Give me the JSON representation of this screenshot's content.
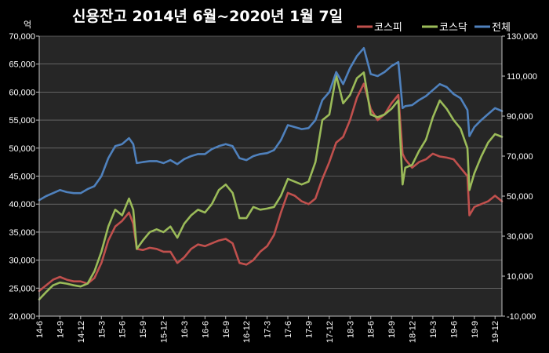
{
  "chart_data": {
    "type": "line",
    "title": "신용잔고 2014년 6월~2020년 1월 7일",
    "left_unit": "억",
    "legend_position": "top-right",
    "grid": true,
    "y_left": {
      "range": [
        20000,
        70000
      ],
      "ticks": [
        "20,000",
        "25,000",
        "30,000",
        "35,000",
        "40,000",
        "45,000",
        "50,000",
        "55,000",
        "60,000",
        "65,000",
        "70,000"
      ]
    },
    "y_right": {
      "range": [
        -10000,
        130000
      ],
      "ticks": [
        "-10,000",
        "10,000",
        "30,000",
        "50,000",
        "70,000",
        "90,000",
        "110,000",
        "130,000"
      ]
    },
    "x": {
      "range": [
        "2014-06",
        "2020-01"
      ],
      "ticks": [
        "14-6",
        "14-9",
        "14-12",
        "15-3",
        "15-6",
        "15-9",
        "15-12",
        "16-3",
        "16-6",
        "16-9",
        "16-12",
        "17-3",
        "17-6",
        "17-9",
        "17-12",
        "18-3",
        "18-6",
        "18-9",
        "18-12",
        "19-3",
        "19-6",
        "19-9",
        "19-12"
      ]
    },
    "series": [
      {
        "name": "코스피",
        "axis": "left",
        "color": "#c0504d",
        "points": [
          [
            "2014-06",
            24500
          ],
          [
            "2014-07",
            25500
          ],
          [
            "2014-08",
            26500
          ],
          [
            "2014-09",
            27000
          ],
          [
            "2014-10",
            26500
          ],
          [
            "2014-11",
            26200
          ],
          [
            "2014-12",
            26200
          ],
          [
            "2015-01",
            25800
          ],
          [
            "2015-02",
            26800
          ],
          [
            "2015-03",
            29500
          ],
          [
            "2015-04",
            33500
          ],
          [
            "2015-05",
            36000
          ],
          [
            "2015-06",
            37000
          ],
          [
            "2015-07",
            38500
          ],
          [
            "2015-07-20",
            36500
          ],
          [
            "2015-08-05",
            32000
          ],
          [
            "2015-09",
            31800
          ],
          [
            "2015-10",
            32200
          ],
          [
            "2015-11",
            32000
          ],
          [
            "2015-12",
            31500
          ],
          [
            "2016-01",
            31500
          ],
          [
            "2016-02",
            29500
          ],
          [
            "2016-03",
            30500
          ],
          [
            "2016-04",
            32000
          ],
          [
            "2016-05",
            32800
          ],
          [
            "2016-06",
            32500
          ],
          [
            "2016-07",
            33000
          ],
          [
            "2016-08",
            33500
          ],
          [
            "2016-09",
            33800
          ],
          [
            "2016-10",
            33000
          ],
          [
            "2016-11",
            29500
          ],
          [
            "2016-12",
            29200
          ],
          [
            "2017-01",
            30000
          ],
          [
            "2017-02",
            31500
          ],
          [
            "2017-03",
            32500
          ],
          [
            "2017-04",
            34500
          ],
          [
            "2017-05",
            38500
          ],
          [
            "2017-06",
            42000
          ],
          [
            "2017-07",
            41500
          ],
          [
            "2017-08",
            40500
          ],
          [
            "2017-09",
            40000
          ],
          [
            "2017-10",
            41000
          ],
          [
            "2017-11",
            44500
          ],
          [
            "2017-12",
            47500
          ],
          [
            "2018-01",
            51000
          ],
          [
            "2018-02",
            52000
          ],
          [
            "2018-03",
            55000
          ],
          [
            "2018-04",
            59000
          ],
          [
            "2018-05",
            61500
          ],
          [
            "2018-06",
            57000
          ],
          [
            "2018-07",
            55000
          ],
          [
            "2018-08",
            56000
          ],
          [
            "2018-09",
            58000
          ],
          [
            "2018-10",
            59500
          ],
          [
            "2018-10-20",
            49000
          ],
          [
            "2018-11",
            48000
          ],
          [
            "2018-12",
            46500
          ],
          [
            "2019-01",
            47500
          ],
          [
            "2019-02",
            48000
          ],
          [
            "2019-03",
            49000
          ],
          [
            "2019-04",
            48500
          ],
          [
            "2019-05",
            48300
          ],
          [
            "2019-06",
            48000
          ],
          [
            "2019-07",
            46500
          ],
          [
            "2019-08-01",
            45000
          ],
          [
            "2019-08-10",
            38000
          ],
          [
            "2019-09",
            39500
          ],
          [
            "2019-10",
            40000
          ],
          [
            "2019-11",
            40500
          ],
          [
            "2019-12",
            41500
          ],
          [
            "2020-01",
            40500
          ]
        ]
      },
      {
        "name": "코스닥",
        "axis": "left",
        "color": "#9bbb59",
        "points": [
          [
            "2014-06",
            23000
          ],
          [
            "2014-07",
            24300
          ],
          [
            "2014-08",
            25500
          ],
          [
            "2014-09",
            26000
          ],
          [
            "2014-10",
            25800
          ],
          [
            "2014-11",
            25500
          ],
          [
            "2014-12",
            25300
          ],
          [
            "2015-01",
            25800
          ],
          [
            "2015-02",
            28000
          ],
          [
            "2015-03",
            31500
          ],
          [
            "2015-04",
            36000
          ],
          [
            "2015-05",
            39000
          ],
          [
            "2015-06",
            38000
          ],
          [
            "2015-07",
            41000
          ],
          [
            "2015-07-20",
            39000
          ],
          [
            "2015-08-05",
            32000
          ],
          [
            "2015-09",
            33500
          ],
          [
            "2015-10",
            35000
          ],
          [
            "2015-11",
            35500
          ],
          [
            "2015-12",
            35000
          ],
          [
            "2016-01",
            36000
          ],
          [
            "2016-02",
            34000
          ],
          [
            "2016-03",
            36500
          ],
          [
            "2016-04",
            38000
          ],
          [
            "2016-05",
            39000
          ],
          [
            "2016-06",
            38500
          ],
          [
            "2016-07",
            40000
          ],
          [
            "2016-08",
            42500
          ],
          [
            "2016-09",
            43500
          ],
          [
            "2016-10",
            42000
          ],
          [
            "2016-11",
            37500
          ],
          [
            "2016-12",
            37500
          ],
          [
            "2017-01",
            39500
          ],
          [
            "2017-02",
            39000
          ],
          [
            "2017-03",
            39200
          ],
          [
            "2017-04",
            39500
          ],
          [
            "2017-05",
            41500
          ],
          [
            "2017-06",
            44500
          ],
          [
            "2017-07",
            44000
          ],
          [
            "2017-08",
            43500
          ],
          [
            "2017-09",
            44000
          ],
          [
            "2017-10",
            47500
          ],
          [
            "2017-11",
            55000
          ],
          [
            "2017-12",
            56000
          ],
          [
            "2018-01",
            63000
          ],
          [
            "2018-02",
            58000
          ],
          [
            "2018-03",
            59500
          ],
          [
            "2018-04",
            62500
          ],
          [
            "2018-05",
            63500
          ],
          [
            "2018-06",
            56000
          ],
          [
            "2018-07",
            55500
          ],
          [
            "2018-08",
            56000
          ],
          [
            "2018-09",
            57000
          ],
          [
            "2018-10",
            58500
          ],
          [
            "2018-10-20",
            43500
          ],
          [
            "2018-11",
            46500
          ],
          [
            "2018-12",
            47000
          ],
          [
            "2019-01",
            49500
          ],
          [
            "2019-02",
            51500
          ],
          [
            "2019-03",
            55500
          ],
          [
            "2019-04",
            58500
          ],
          [
            "2019-05",
            57000
          ],
          [
            "2019-06",
            55000
          ],
          [
            "2019-07",
            53500
          ],
          [
            "2019-08-01",
            50000
          ],
          [
            "2019-08-10",
            42500
          ],
          [
            "2019-09",
            45500
          ],
          [
            "2019-10",
            48500
          ],
          [
            "2019-11",
            51000
          ],
          [
            "2019-12",
            52500
          ],
          [
            "2020-01",
            52000
          ]
        ]
      },
      {
        "name": "전체",
        "axis": "right",
        "color": "#4f81bd",
        "points": [
          [
            "2014-06",
            48000
          ],
          [
            "2014-07",
            50000
          ],
          [
            "2014-08",
            51500
          ],
          [
            "2014-09",
            53000
          ],
          [
            "2014-10",
            52000
          ],
          [
            "2014-11",
            51500
          ],
          [
            "2014-12",
            51500
          ],
          [
            "2015-01",
            53500
          ],
          [
            "2015-02",
            55000
          ],
          [
            "2015-03",
            60000
          ],
          [
            "2015-04",
            69000
          ],
          [
            "2015-05",
            75000
          ],
          [
            "2015-06",
            76000
          ],
          [
            "2015-07",
            79000
          ],
          [
            "2015-07-20",
            76000
          ],
          [
            "2015-08-05",
            66500
          ],
          [
            "2015-09",
            67000
          ],
          [
            "2015-10",
            67500
          ],
          [
            "2015-11",
            67500
          ],
          [
            "2015-12",
            66500
          ],
          [
            "2016-01",
            68000
          ],
          [
            "2016-02",
            66000
          ],
          [
            "2016-03",
            68500
          ],
          [
            "2016-04",
            70000
          ],
          [
            "2016-05",
            71000
          ],
          [
            "2016-06",
            71000
          ],
          [
            "2016-07",
            73500
          ],
          [
            "2016-08",
            75000
          ],
          [
            "2016-09",
            76000
          ],
          [
            "2016-10",
            75000
          ],
          [
            "2016-11",
            69000
          ],
          [
            "2016-12",
            68000
          ],
          [
            "2017-01",
            70000
          ],
          [
            "2017-02",
            71000
          ],
          [
            "2017-03",
            71500
          ],
          [
            "2017-04",
            73000
          ],
          [
            "2017-05",
            78000
          ],
          [
            "2017-06",
            85500
          ],
          [
            "2017-07",
            84500
          ],
          [
            "2017-08",
            83500
          ],
          [
            "2017-09",
            84000
          ],
          [
            "2017-10",
            88000
          ],
          [
            "2017-11",
            98000
          ],
          [
            "2017-12",
            102000
          ],
          [
            "2018-01",
            112000
          ],
          [
            "2018-02",
            106000
          ],
          [
            "2018-03",
            114000
          ],
          [
            "2018-04",
            120000
          ],
          [
            "2018-05",
            124000
          ],
          [
            "2018-06",
            111000
          ],
          [
            "2018-07",
            110000
          ],
          [
            "2018-08",
            112000
          ],
          [
            "2018-09",
            115000
          ],
          [
            "2018-10",
            117000
          ],
          [
            "2018-10-20",
            94000
          ],
          [
            "2018-11",
            95000
          ],
          [
            "2018-12",
            95500
          ],
          [
            "2019-01",
            98000
          ],
          [
            "2019-02",
            100000
          ],
          [
            "2019-03",
            103000
          ],
          [
            "2019-04",
            106000
          ],
          [
            "2019-05",
            104500
          ],
          [
            "2019-06",
            101000
          ],
          [
            "2019-07",
            99000
          ],
          [
            "2019-08-01",
            93000
          ],
          [
            "2019-08-10",
            80000
          ],
          [
            "2019-09",
            84500
          ],
          [
            "2019-10",
            88000
          ],
          [
            "2019-11",
            91000
          ],
          [
            "2019-12",
            94000
          ],
          [
            "2020-01",
            92500
          ]
        ]
      }
    ]
  }
}
